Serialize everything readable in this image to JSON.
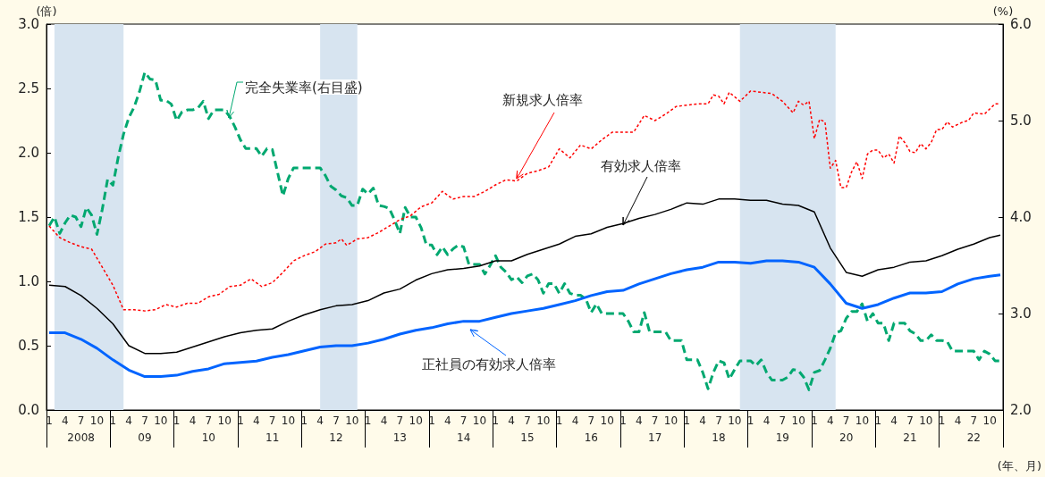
{
  "chart_data": {
    "type": "line",
    "xlabel": "(年、月)",
    "ylabel": "(倍)",
    "y2label": "(%)",
    "x": [
      "2008-01",
      "2008-02",
      "2008-03",
      "2008-04",
      "2008-05",
      "2008-06",
      "2008-07",
      "2008-08",
      "2008-09",
      "2008-10",
      "2008-11",
      "2008-12",
      "2009-01",
      "2009-02",
      "2009-03",
      "2009-04",
      "2009-05",
      "2009-06",
      "2009-07",
      "2009-08",
      "2009-09",
      "2009-10",
      "2009-11",
      "2009-12",
      "2010-01",
      "2010-02",
      "2010-03",
      "2010-04",
      "2010-05",
      "2010-06",
      "2010-07",
      "2010-08",
      "2010-09",
      "2010-10",
      "2010-11",
      "2010-12",
      "2011-01",
      "2011-02",
      "2011-03",
      "2011-04",
      "2011-05",
      "2011-06",
      "2011-07",
      "2011-08",
      "2011-09",
      "2011-10",
      "2011-11",
      "2011-12",
      "2012-01",
      "2012-02",
      "2012-03",
      "2012-04",
      "2012-05",
      "2012-06",
      "2012-07",
      "2012-08",
      "2012-09",
      "2012-10",
      "2012-11",
      "2012-12",
      "2013-01",
      "2013-02",
      "2013-03",
      "2013-04",
      "2013-05",
      "2013-06",
      "2013-07",
      "2013-08",
      "2013-09",
      "2013-10",
      "2013-11",
      "2013-12",
      "2014-01",
      "2014-02",
      "2014-03",
      "2014-04",
      "2014-05",
      "2014-06",
      "2014-07",
      "2014-08",
      "2014-09",
      "2014-10",
      "2014-11",
      "2014-12",
      "2015-01",
      "2015-02",
      "2015-03",
      "2015-04",
      "2015-05",
      "2015-06",
      "2015-07",
      "2015-08",
      "2015-09",
      "2015-10",
      "2015-11",
      "2015-12",
      "2016-01",
      "2016-02",
      "2016-03",
      "2016-04",
      "2016-05",
      "2016-06",
      "2016-07",
      "2016-08",
      "2016-09",
      "2016-10",
      "2016-11",
      "2016-12",
      "2017-01",
      "2017-02",
      "2017-03",
      "2017-04",
      "2017-05",
      "2017-06",
      "2017-07",
      "2017-08",
      "2017-09",
      "2017-10",
      "2017-11",
      "2017-12",
      "2018-01",
      "2018-02",
      "2018-03",
      "2018-04",
      "2018-05",
      "2018-06",
      "2018-07",
      "2018-08",
      "2018-09",
      "2018-10",
      "2018-11",
      "2018-12",
      "2019-01",
      "2019-02",
      "2019-03",
      "2019-04",
      "2019-05",
      "2019-06",
      "2019-07",
      "2019-08",
      "2019-09",
      "2019-10",
      "2019-11",
      "2019-12",
      "2020-01",
      "2020-02",
      "2020-03",
      "2020-04",
      "2020-05",
      "2020-06",
      "2020-07",
      "2020-08",
      "2020-09",
      "2020-10",
      "2020-11",
      "2020-12",
      "2021-01",
      "2021-02",
      "2021-03",
      "2021-04",
      "2021-05",
      "2021-06",
      "2021-07",
      "2021-08",
      "2021-09",
      "2021-10",
      "2021-11",
      "2021-12",
      "2022-01",
      "2022-02",
      "2022-03",
      "2022-04",
      "2022-05",
      "2022-06",
      "2022-07",
      "2022-08",
      "2022-09",
      "2022-10",
      "2022-11",
      "2022-12"
    ],
    "xlim": [
      "2008-01",
      "2022-12"
    ],
    "xticks": [
      {
        "value": "2008-01",
        "label": "1"
      },
      {
        "value": "2008-04",
        "label": "4"
      },
      {
        "value": "2008-07",
        "label": "7"
      },
      {
        "value": "2008-10",
        "label": "10"
      },
      {
        "value": "2009-01",
        "label": "1"
      },
      {
        "value": "2009-04",
        "label": "4"
      },
      {
        "value": "2009-07",
        "label": "7"
      },
      {
        "value": "2009-10",
        "label": "10"
      },
      {
        "value": "2010-01",
        "label": "1"
      },
      {
        "value": "2010-04",
        "label": "4"
      },
      {
        "value": "2010-07",
        "label": "7"
      },
      {
        "value": "2010-10",
        "label": "10"
      },
      {
        "value": "2011-01",
        "label": "1"
      },
      {
        "value": "2011-04",
        "label": "4"
      },
      {
        "value": "2011-07",
        "label": "7"
      },
      {
        "value": "2011-10",
        "label": "10"
      },
      {
        "value": "2012-01",
        "label": "1"
      },
      {
        "value": "2012-04",
        "label": "4"
      },
      {
        "value": "2012-07",
        "label": "7"
      },
      {
        "value": "2012-10",
        "label": "10"
      },
      {
        "value": "2013-01",
        "label": "1"
      },
      {
        "value": "2013-04",
        "label": "4"
      },
      {
        "value": "2013-07",
        "label": "7"
      },
      {
        "value": "2013-10",
        "label": "10"
      },
      {
        "value": "2014-01",
        "label": "1"
      },
      {
        "value": "2014-04",
        "label": "4"
      },
      {
        "value": "2014-07",
        "label": "7"
      },
      {
        "value": "2014-10",
        "label": "10"
      },
      {
        "value": "2015-01",
        "label": "1"
      },
      {
        "value": "2015-04",
        "label": "4"
      },
      {
        "value": "2015-07",
        "label": "7"
      },
      {
        "value": "2015-10",
        "label": "10"
      },
      {
        "value": "2016-01",
        "label": "1"
      },
      {
        "value": "2016-04",
        "label": "4"
      },
      {
        "value": "2016-07",
        "label": "7"
      },
      {
        "value": "2016-10",
        "label": "10"
      },
      {
        "value": "2017-01",
        "label": "1"
      },
      {
        "value": "2017-04",
        "label": "4"
      },
      {
        "value": "2017-07",
        "label": "7"
      },
      {
        "value": "2017-10",
        "label": "10"
      },
      {
        "value": "2018-01",
        "label": "1"
      },
      {
        "value": "2018-04",
        "label": "4"
      },
      {
        "value": "2018-07",
        "label": "7"
      },
      {
        "value": "2018-10",
        "label": "10"
      },
      {
        "value": "2019-01",
        "label": "1"
      },
      {
        "value": "2019-04",
        "label": "4"
      },
      {
        "value": "2019-07",
        "label": "7"
      },
      {
        "value": "2019-10",
        "label": "10"
      },
      {
        "value": "2020-01",
        "label": "1"
      },
      {
        "value": "2020-04",
        "label": "4"
      },
      {
        "value": "2020-07",
        "label": "7"
      },
      {
        "value": "2020-10",
        "label": "10"
      },
      {
        "value": "2021-01",
        "label": "1"
      },
      {
        "value": "2021-04",
        "label": "4"
      },
      {
        "value": "2021-07",
        "label": "7"
      },
      {
        "value": "2021-10",
        "label": "10"
      },
      {
        "value": "2022-01",
        "label": "1"
      },
      {
        "value": "2022-04",
        "label": "4"
      },
      {
        "value": "2022-07",
        "label": "7"
      },
      {
        "value": "2022-10",
        "label": "10"
      }
    ],
    "x2lim": [
      "2008-01",
      "2022-12"
    ],
    "x2ticks": [
      {
        "value": "2008-07",
        "label": "2008"
      },
      {
        "value": "2009-07",
        "label": "09"
      },
      {
        "value": "2010-07",
        "label": "10"
      },
      {
        "value": "2011-07",
        "label": "11"
      },
      {
        "value": "2012-07",
        "label": "12"
      },
      {
        "value": "2013-07",
        "label": "13"
      },
      {
        "value": "2014-07",
        "label": "14"
      },
      {
        "value": "2015-07",
        "label": "15"
      },
      {
        "value": "2016-07",
        "label": "16"
      },
      {
        "value": "2017-07",
        "label": "17"
      },
      {
        "value": "2018-07",
        "label": "18"
      },
      {
        "value": "2019-07",
        "label": "19"
      },
      {
        "value": "2020-07",
        "label": "20"
      },
      {
        "value": "2021-07",
        "label": "21"
      },
      {
        "value": "2022-07",
        "label": "22"
      }
    ],
    "ylim": [
      0,
      3
    ],
    "yticks": [
      {
        "value": 0,
        "label": "0.0"
      },
      {
        "value": 0.5,
        "label": "0.5"
      },
      {
        "value": 1,
        "label": "1.0"
      },
      {
        "value": 1.5,
        "label": "1.5"
      },
      {
        "value": 2,
        "label": "2.0"
      },
      {
        "value": 2.5,
        "label": "2.5"
      },
      {
        "value": 3,
        "label": "3.0"
      }
    ],
    "y2lim": [
      2,
      6
    ],
    "y2ticks": [
      {
        "value": 2,
        "label": "2.0"
      },
      {
        "value": 3,
        "label": "3.0"
      },
      {
        "value": 4,
        "label": "4.0"
      },
      {
        "value": 5,
        "label": "5.0"
      },
      {
        "value": 6,
        "label": "6.0"
      }
    ],
    "marker": "none",
    "bands": [
      {
        "axis": "x",
        "from": "2008-02",
        "to": "2009-03",
        "color": "#d7e4f0"
      },
      {
        "axis": "x",
        "from": "2012-04",
        "to": "2012-11",
        "color": "#d7e4f0"
      },
      {
        "axis": "x",
        "from": "2018-11",
        "to": "2020-05",
        "color": "#d7e4f0"
      }
    ],
    "series": [
      {
        "name": "完全失業率(右目盛)",
        "color": "#00a870",
        "axis": "y2",
        "line_style": "dashed",
        "values": [
          3.91,
          4.0,
          3.83,
          3.94,
          4.02,
          4.0,
          3.9,
          4.1,
          4.02,
          3.82,
          4.08,
          4.39,
          4.33,
          4.62,
          4.86,
          5.03,
          5.14,
          5.3,
          5.5,
          5.43,
          5.42,
          5.21,
          5.21,
          5.17,
          5.0,
          5.09,
          5.11,
          5.11,
          5.13,
          5.2,
          5.02,
          5.11,
          5.11,
          5.11,
          5.04,
          4.93,
          4.8,
          4.71,
          4.71,
          4.71,
          4.63,
          4.71,
          4.7,
          4.46,
          4.22,
          4.4,
          4.51,
          4.51,
          4.51,
          4.51,
          4.51,
          4.51,
          4.43,
          4.32,
          4.28,
          4.22,
          4.2,
          4.12,
          4.12,
          4.29,
          4.24,
          4.3,
          4.12,
          4.11,
          4.09,
          3.97,
          3.83,
          4.1,
          4.0,
          4.0,
          3.89,
          3.71,
          3.71,
          3.61,
          3.69,
          3.61,
          3.67,
          3.71,
          3.69,
          3.51,
          3.51,
          3.51,
          3.41,
          3.5,
          3.6,
          3.48,
          3.43,
          3.35,
          3.38,
          3.32,
          3.39,
          3.41,
          3.35,
          3.21,
          3.31,
          3.31,
          3.21,
          3.31,
          3.21,
          3.19,
          3.19,
          3.15,
          3.01,
          3.1,
          3.0,
          3.0,
          3.0,
          3.0,
          3.0,
          2.92,
          2.81,
          2.81,
          3.01,
          2.81,
          2.81,
          2.81,
          2.81,
          2.72,
          2.72,
          2.72,
          2.52,
          2.52,
          2.52,
          2.39,
          2.22,
          2.39,
          2.51,
          2.49,
          2.32,
          2.42,
          2.51,
          2.51,
          2.51,
          2.46,
          2.52,
          2.39,
          2.31,
          2.31,
          2.31,
          2.34,
          2.42,
          2.41,
          2.34,
          2.21,
          2.39,
          2.41,
          2.52,
          2.64,
          2.8,
          2.82,
          2.95,
          3.02,
          3.02,
          3.1,
          2.92,
          3.0,
          2.9,
          2.9,
          2.72,
          2.9,
          2.9,
          2.9,
          2.82,
          2.79,
          2.72,
          2.72,
          2.78,
          2.72,
          2.72,
          2.71,
          2.61,
          2.61,
          2.61,
          2.61,
          2.61,
          2.52,
          2.61,
          2.58,
          2.51,
          2.51
        ]
      },
      {
        "name": "新規求人倍率",
        "color": "#ff0000",
        "line_style": "dotted",
        "x": [
          "2008-01",
          "2008-03",
          "2008-05",
          "2008-07",
          "2008-09",
          "2008-11",
          "2009-01",
          "2009-03",
          "2009-05",
          "2009-07",
          "2009-09",
          "2009-11",
          "2010-01",
          "2010-03",
          "2010-05",
          "2010-07",
          "2010-09",
          "2010-11",
          "2011-01",
          "2011-03",
          "2011-05",
          "2011-07",
          "2011-09",
          "2011-11",
          "2012-01",
          "2012-03",
          "2012-05",
          "2012-07",
          "2012-08",
          "2012-09",
          "2012-11",
          "2013-01",
          "2013-03",
          "2013-05",
          "2013-07",
          "2013-09",
          "2013-11",
          "2014-01",
          "2014-03",
          "2014-05",
          "2014-07",
          "2014-09",
          "2014-11",
          "2015-01",
          "2015-03",
          "2015-05",
          "2015-07",
          "2015-09",
          "2015-11",
          "2016-01",
          "2016-03",
          "2016-05",
          "2016-07",
          "2016-09",
          "2016-11",
          "2017-01",
          "2017-03",
          "2017-05",
          "2017-07",
          "2017-09",
          "2017-11",
          "2018-01",
          "2018-03",
          "2018-05",
          "2018-06",
          "2018-07",
          "2018-08",
          "2018-09",
          "2018-11",
          "2019-01",
          "2019-03",
          "2019-05",
          "2019-07",
          "2019-09",
          "2019-10",
          "2019-11",
          "2019-12",
          "2020-01",
          "2020-02",
          "2020-03",
          "2020-04",
          "2020-05",
          "2020-06",
          "2020-07",
          "2020-08",
          "2020-09",
          "2020-10",
          "2020-11",
          "2020-12",
          "2021-01",
          "2021-02",
          "2021-03",
          "2021-04",
          "2021-05",
          "2021-06",
          "2021-07",
          "2021-08",
          "2021-09",
          "2021-10",
          "2021-11",
          "2021-12",
          "2022-01",
          "2022-02",
          "2022-03",
          "2022-05",
          "2022-06",
          "2022-07",
          "2022-09",
          "2022-11",
          "2022-12"
        ],
        "values": [
          1.43,
          1.34,
          1.3,
          1.27,
          1.25,
          1.11,
          0.97,
          0.78,
          0.78,
          0.77,
          0.78,
          0.82,
          0.8,
          0.83,
          0.83,
          0.88,
          0.9,
          0.96,
          0.97,
          1.02,
          0.96,
          0.99,
          1.07,
          1.16,
          1.2,
          1.23,
          1.29,
          1.3,
          1.33,
          1.28,
          1.33,
          1.34,
          1.38,
          1.43,
          1.48,
          1.51,
          1.58,
          1.61,
          1.7,
          1.64,
          1.66,
          1.66,
          1.7,
          1.75,
          1.79,
          1.78,
          1.84,
          1.86,
          1.89,
          2.03,
          1.96,
          2.06,
          2.03,
          2.1,
          2.16,
          2.16,
          2.16,
          2.29,
          2.25,
          2.3,
          2.36,
          2.37,
          2.38,
          2.38,
          2.45,
          2.44,
          2.38,
          2.47,
          2.4,
          2.48,
          2.47,
          2.46,
          2.4,
          2.31,
          2.4,
          2.37,
          2.4,
          2.11,
          2.26,
          2.24,
          1.88,
          1.94,
          1.73,
          1.73,
          1.85,
          1.93,
          1.8,
          1.99,
          2.02,
          2.02,
          1.96,
          1.99,
          1.92,
          2.13,
          2.08,
          2.01,
          2.0,
          2.07,
          2.03,
          2.08,
          2.18,
          2.18,
          2.24,
          2.2,
          2.24,
          2.25,
          2.31,
          2.3,
          2.38,
          2.38
        ]
      },
      {
        "name": "有効求人倍率",
        "color": "#000000",
        "line_style": "solid",
        "x": [
          "2008-01",
          "2008-04",
          "2008-07",
          "2008-10",
          "2009-01",
          "2009-04",
          "2009-07",
          "2009-10",
          "2010-01",
          "2010-04",
          "2010-07",
          "2010-10",
          "2011-01",
          "2011-04",
          "2011-07",
          "2011-10",
          "2012-01",
          "2012-04",
          "2012-07",
          "2012-10",
          "2013-01",
          "2013-04",
          "2013-07",
          "2013-10",
          "2014-01",
          "2014-04",
          "2014-07",
          "2014-10",
          "2015-01",
          "2015-04",
          "2015-07",
          "2015-10",
          "2016-01",
          "2016-04",
          "2016-07",
          "2016-10",
          "2017-01",
          "2017-04",
          "2017-07",
          "2017-10",
          "2018-01",
          "2018-04",
          "2018-07",
          "2018-10",
          "2019-01",
          "2019-04",
          "2019-07",
          "2019-10",
          "2020-01",
          "2020-04",
          "2020-07",
          "2020-10",
          "2021-01",
          "2021-04",
          "2021-07",
          "2021-10",
          "2022-01",
          "2022-04",
          "2022-07",
          "2022-10",
          "2022-12"
        ],
        "values": [
          0.97,
          0.96,
          0.89,
          0.79,
          0.67,
          0.5,
          0.44,
          0.44,
          0.45,
          0.49,
          0.53,
          0.57,
          0.6,
          0.62,
          0.63,
          0.69,
          0.74,
          0.78,
          0.81,
          0.82,
          0.85,
          0.91,
          0.94,
          1.01,
          1.06,
          1.09,
          1.1,
          1.12,
          1.16,
          1.16,
          1.21,
          1.25,
          1.29,
          1.35,
          1.37,
          1.42,
          1.45,
          1.49,
          1.52,
          1.56,
          1.61,
          1.6,
          1.64,
          1.64,
          1.63,
          1.63,
          1.6,
          1.59,
          1.54,
          1.26,
          1.07,
          1.04,
          1.09,
          1.11,
          1.15,
          1.16,
          1.2,
          1.25,
          1.29,
          1.34,
          1.36
        ]
      },
      {
        "name": "正社員の有効求人倍率",
        "color": "#0064ff",
        "line_style": "solid",
        "x": [
          "2008-01",
          "2008-04",
          "2008-07",
          "2008-10",
          "2009-01",
          "2009-04",
          "2009-07",
          "2009-10",
          "2010-01",
          "2010-04",
          "2010-07",
          "2010-10",
          "2011-01",
          "2011-04",
          "2011-07",
          "2011-10",
          "2012-01",
          "2012-04",
          "2012-07",
          "2012-10",
          "2013-01",
          "2013-04",
          "2013-07",
          "2013-10",
          "2014-01",
          "2014-04",
          "2014-07",
          "2014-10",
          "2015-01",
          "2015-04",
          "2015-07",
          "2015-10",
          "2016-01",
          "2016-04",
          "2016-07",
          "2016-10",
          "2017-01",
          "2017-04",
          "2017-07",
          "2017-10",
          "2018-01",
          "2018-04",
          "2018-07",
          "2018-10",
          "2019-01",
          "2019-04",
          "2019-07",
          "2019-10",
          "2020-01",
          "2020-04",
          "2020-07",
          "2020-10",
          "2021-01",
          "2021-04",
          "2021-07",
          "2021-10",
          "2022-01",
          "2022-04",
          "2022-07",
          "2022-10",
          "2022-12"
        ],
        "values": [
          0.6,
          0.6,
          0.55,
          0.48,
          0.39,
          0.31,
          0.26,
          0.26,
          0.27,
          0.3,
          0.32,
          0.36,
          0.37,
          0.38,
          0.41,
          0.43,
          0.46,
          0.49,
          0.5,
          0.5,
          0.52,
          0.55,
          0.59,
          0.62,
          0.64,
          0.67,
          0.69,
          0.69,
          0.72,
          0.75,
          0.77,
          0.79,
          0.82,
          0.85,
          0.89,
          0.92,
          0.93,
          0.98,
          1.02,
          1.06,
          1.09,
          1.11,
          1.15,
          1.15,
          1.14,
          1.16,
          1.16,
          1.15,
          1.11,
          0.98,
          0.83,
          0.79,
          0.82,
          0.87,
          0.91,
          0.91,
          0.92,
          0.98,
          1.02,
          1.04,
          1.05
        ]
      }
    ]
  }
}
